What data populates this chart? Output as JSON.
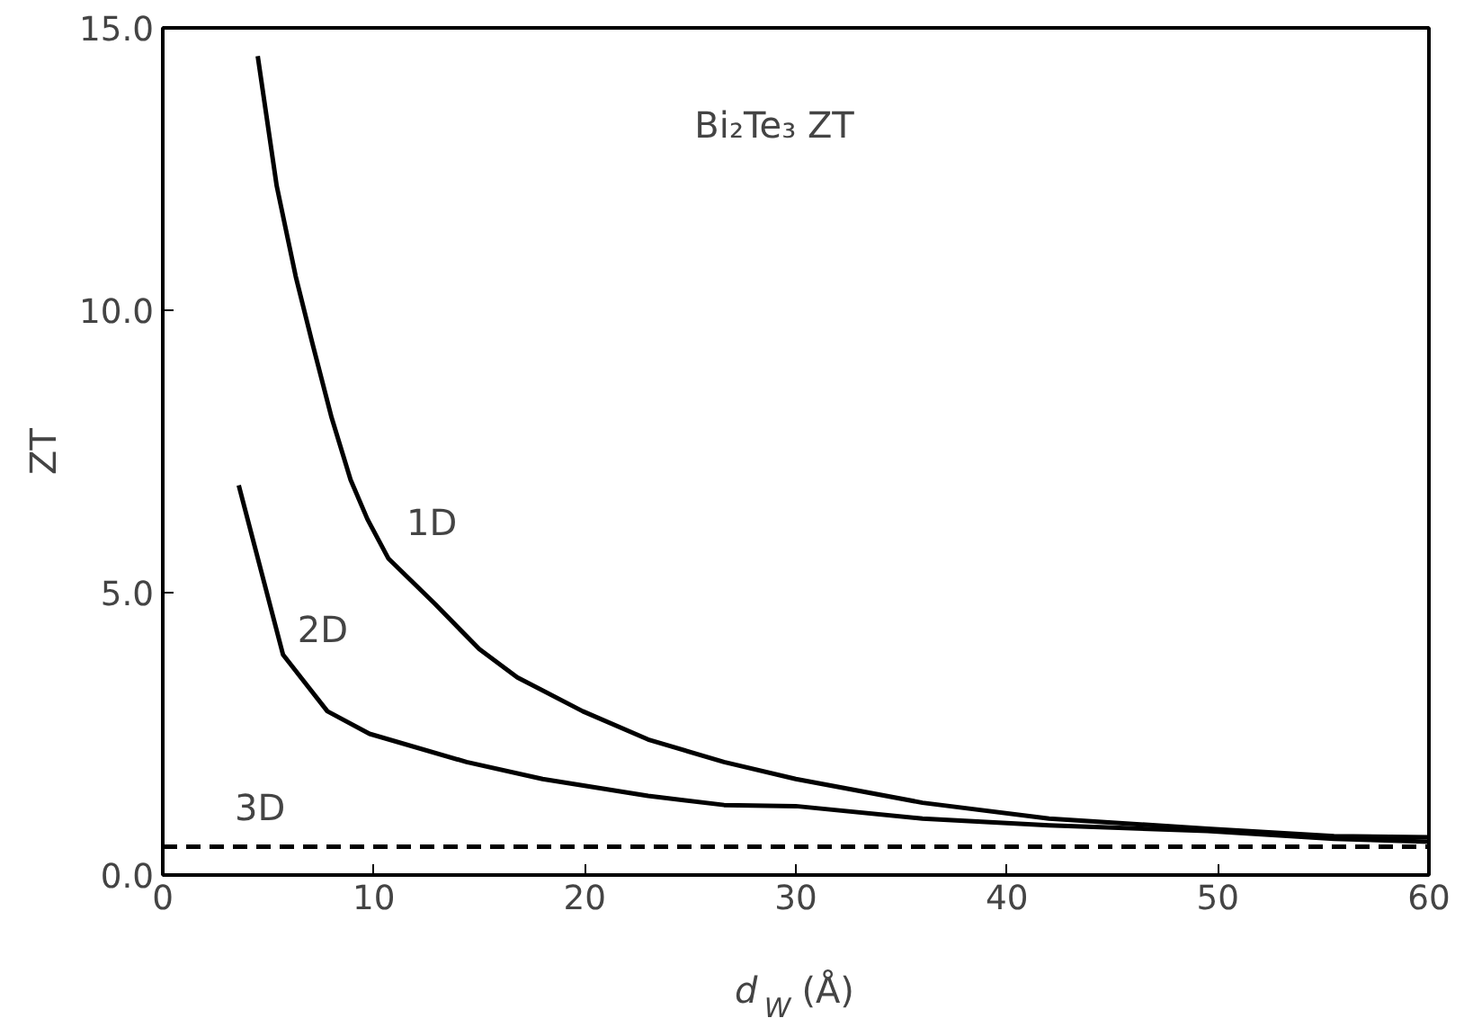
{
  "chart_data": {
    "type": "line",
    "xlabel": "d$_{W}$ (Å)",
    "ylabel": "ZT",
    "xlim": [
      0,
      60
    ],
    "ylim": [
      0,
      15
    ],
    "xticks": [
      0,
      10,
      20,
      30,
      40,
      50,
      60
    ],
    "yticks": [
      {
        "value": 0,
        "label": "0.0"
      },
      {
        "value": 5,
        "label": "5.0"
      },
      {
        "value": 10,
        "label": "10.0"
      },
      {
        "value": 15,
        "label": "15.0"
      }
    ],
    "grid": false,
    "marker": "none",
    "series": [
      {
        "name": "1D",
        "color": "#000000",
        "x": [
          4.5,
          5.4,
          6.3,
          7.1,
          8.0,
          8.9,
          9.7,
          10.7,
          12.9,
          15.0,
          16.8,
          19.9,
          23.0,
          26.6,
          30,
          36,
          42,
          49.5,
          55.5,
          60
        ],
        "values": [
          14.5,
          12.2,
          10.6,
          9.4,
          8.1,
          7.0,
          6.3,
          5.6,
          4.8,
          4.0,
          3.5,
          2.9,
          2.4,
          2.0,
          1.7,
          1.28,
          1.0,
          0.82,
          0.69,
          0.67
        ]
      },
      {
        "name": "2D",
        "color": "#000000",
        "x": [
          3.6,
          5.7,
          7.8,
          9.8,
          14.4,
          18.0,
          23,
          26.6,
          30,
          36,
          42,
          49.5,
          55.5,
          60
        ],
        "values": [
          6.9,
          3.9,
          2.9,
          2.5,
          2.0,
          1.7,
          1.4,
          1.24,
          1.22,
          1.0,
          0.88,
          0.78,
          0.64,
          0.59
        ]
      },
      {
        "name": "3D",
        "color": "#000000",
        "line_style": "dashed",
        "x": [
          0,
          60
        ],
        "values": [
          0.5,
          0.5
        ]
      }
    ],
    "annotations": [
      "Bi₂Te₃ ZT"
    ]
  }
}
